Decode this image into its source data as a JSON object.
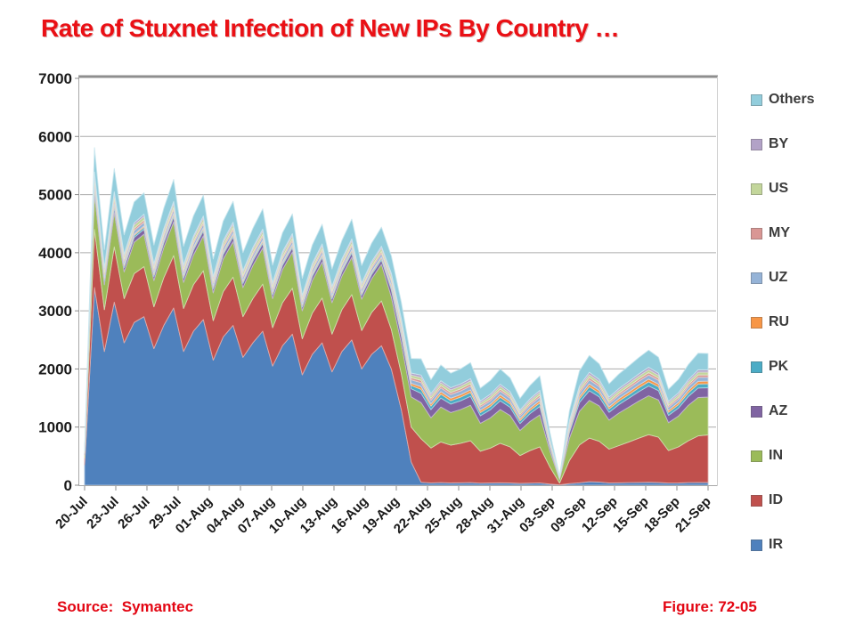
{
  "slide": {
    "title": "Rate of Stuxnet Infection of New IPs By Country …",
    "footer_left": "Source:  Symantec",
    "footer_right": "Figure: 72-05",
    "title_color": "#ea1015",
    "footer_color": "#e30613"
  },
  "chart_data": {
    "type": "area",
    "stacked": true,
    "title": "",
    "xlabel": "",
    "ylabel": "",
    "ylim": [
      0,
      7000
    ],
    "y_ticks": [
      0,
      1000,
      2000,
      3000,
      4000,
      5000,
      6000,
      7000
    ],
    "grid": "horizontal",
    "legend_position": "right",
    "legend_order_top_to_bottom": [
      "Others",
      "BY",
      "US",
      "MY",
      "UZ",
      "RU",
      "PK",
      "AZ",
      "IN",
      "ID",
      "IR"
    ],
    "x_tick_labels": [
      "20-Jul",
      "23-Jul",
      "26-Jul",
      "29-Jul",
      "01-Aug",
      "04-Aug",
      "07-Aug",
      "10-Aug",
      "13-Aug",
      "16-Aug",
      "19-Aug",
      "22-Aug",
      "25-Aug",
      "28-Aug",
      "31-Aug",
      "03-Sep",
      "09-Sep",
      "12-Sep",
      "15-Sep",
      "18-Sep",
      "21-Sep"
    ],
    "series_bottom_to_top": [
      {
        "name": "IR",
        "color": "#4F81BD",
        "values": [
          350,
          3400,
          2300,
          3150,
          2450,
          2800,
          2900,
          2350,
          2750,
          3050,
          2300,
          2650,
          2850,
          2150,
          2550,
          2750,
          2200,
          2450,
          2650,
          2050,
          2400,
          2600,
          1900,
          2250,
          2450,
          1950,
          2300,
          2500,
          2000,
          2250,
          2400,
          2000,
          1300,
          400,
          50,
          40,
          45,
          40,
          42,
          45,
          35,
          38,
          42,
          38,
          30,
          35,
          40,
          20,
          6,
          28,
          42,
          60,
          55,
          40,
          42,
          45,
          48,
          50,
          46,
          36,
          39,
          44,
          48,
          46
        ]
      },
      {
        "name": "ID",
        "color": "#C0504D",
        "values": [
          120,
          1000,
          720,
          950,
          760,
          840,
          860,
          720,
          820,
          900,
          740,
          800,
          840,
          680,
          780,
          830,
          700,
          760,
          810,
          660,
          740,
          790,
          620,
          710,
          770,
          650,
          720,
          780,
          660,
          720,
          770,
          680,
          620,
          600,
          750,
          600,
          700,
          650,
          680,
          720,
          550,
          600,
          680,
          620,
          480,
          560,
          620,
          300,
          30,
          400,
          650,
          750,
          700,
          580,
          640,
          700,
          760,
          820,
          780,
          560,
          620,
          720,
          800,
          820
        ]
      },
      {
        "name": "IN",
        "color": "#9BBB59",
        "values": [
          60,
          620,
          430,
          590,
          460,
          540,
          560,
          450,
          520,
          580,
          450,
          510,
          600,
          480,
          560,
          610,
          500,
          570,
          620,
          500,
          570,
          620,
          480,
          560,
          620,
          540,
          580,
          640,
          540,
          580,
          630,
          560,
          520,
          520,
          620,
          520,
          600,
          560,
          580,
          610,
          480,
          520,
          580,
          540,
          430,
          500,
          550,
          280,
          60,
          380,
          580,
          650,
          610,
          500,
          560,
          600,
          640,
          670,
          640,
          480,
          530,
          610,
          660,
          650
        ]
      },
      {
        "name": "AZ",
        "color": "#8064A2",
        "values": [
          15,
          90,
          70,
          88,
          75,
          82,
          84,
          72,
          80,
          86,
          74,
          80,
          84,
          70,
          78,
          82,
          72,
          76,
          80,
          68,
          75,
          78,
          66,
          72,
          76,
          68,
          72,
          78,
          68,
          72,
          76,
          120,
          130,
          140,
          160,
          140,
          155,
          145,
          150,
          155,
          130,
          140,
          150,
          142,
          120,
          135,
          145,
          70,
          12,
          100,
          150,
          165,
          155,
          135,
          145,
          152,
          160,
          168,
          160,
          125,
          138,
          152,
          165,
          162
        ]
      },
      {
        "name": "PK",
        "color": "#4BACC6",
        "values": [
          6,
          38,
          30,
          37,
          31,
          34,
          35,
          30,
          33,
          36,
          31,
          33,
          35,
          29,
          32,
          34,
          30,
          32,
          33,
          28,
          31,
          33,
          28,
          30,
          32,
          29,
          30,
          33,
          29,
          30,
          32,
          45,
          50,
          55,
          70,
          60,
          65,
          60,
          63,
          66,
          55,
          58,
          62,
          58,
          50,
          55,
          60,
          30,
          6,
          45,
          62,
          70,
          65,
          56,
          60,
          63,
          67,
          70,
          66,
          52,
          57,
          63,
          68,
          67
        ]
      },
      {
        "name": "RU",
        "color": "#F79646",
        "values": [
          4,
          25,
          20,
          24,
          21,
          22,
          23,
          20,
          22,
          24,
          20,
          22,
          23,
          19,
          21,
          22,
          20,
          21,
          22,
          19,
          20,
          22,
          18,
          20,
          21,
          19,
          20,
          22,
          19,
          20,
          21,
          30,
          35,
          38,
          45,
          40,
          45,
          42,
          43,
          45,
          38,
          40,
          43,
          40,
          35,
          38,
          42,
          20,
          4,
          30,
          43,
          48,
          45,
          39,
          42,
          44,
          46,
          48,
          46,
          36,
          40,
          44,
          47,
          46
        ]
      },
      {
        "name": "UZ",
        "color": "#95B3D7",
        "values": [
          10,
          68,
          55,
          66,
          57,
          62,
          63,
          54,
          60,
          65,
          56,
          60,
          63,
          52,
          58,
          62,
          54,
          57,
          60,
          51,
          56,
          59,
          50,
          54,
          57,
          52,
          54,
          59,
          52,
          54,
          57,
          70,
          75,
          60,
          70,
          60,
          65,
          62,
          63,
          66,
          55,
          58,
          62,
          58,
          50,
          55,
          60,
          30,
          6,
          45,
          62,
          70,
          65,
          56,
          60,
          63,
          67,
          70,
          66,
          52,
          57,
          63,
          68,
          67
        ]
      },
      {
        "name": "MY",
        "color": "#D99694",
        "values": [
          6,
          42,
          34,
          41,
          35,
          38,
          39,
          33,
          37,
          40,
          34,
          37,
          39,
          32,
          36,
          38,
          33,
          35,
          37,
          31,
          35,
          36,
          30,
          33,
          36,
          32,
          33,
          36,
          32,
          33,
          36,
          40,
          40,
          36,
          40,
          35,
          38,
          36,
          37,
          39,
          32,
          34,
          36,
          34,
          30,
          32,
          35,
          18,
          4,
          26,
          36,
          40,
          38,
          33,
          35,
          37,
          39,
          41,
          38,
          30,
          33,
          36,
          40,
          39
        ]
      },
      {
        "name": "US",
        "color": "#C3D69B",
        "values": [
          10,
          66,
          53,
          64,
          55,
          60,
          61,
          52,
          58,
          63,
          54,
          58,
          61,
          50,
          56,
          60,
          52,
          55,
          58,
          49,
          54,
          57,
          48,
          52,
          55,
          50,
          52,
          57,
          50,
          52,
          55,
          60,
          60,
          45,
          50,
          45,
          48,
          46,
          47,
          49,
          42,
          44,
          46,
          44,
          38,
          42,
          45,
          22,
          6,
          34,
          46,
          50,
          48,
          43,
          45,
          47,
          49,
          51,
          48,
          40,
          43,
          46,
          50,
          49
        ]
      },
      {
        "name": "BY",
        "color": "#B2A2C7",
        "values": [
          6,
          40,
          32,
          39,
          33,
          36,
          37,
          32,
          35,
          38,
          33,
          35,
          37,
          30,
          34,
          36,
          31,
          33,
          35,
          30,
          33,
          34,
          29,
          32,
          34,
          30,
          32,
          34,
          30,
          32,
          34,
          40,
          40,
          36,
          40,
          35,
          38,
          36,
          37,
          39,
          32,
          34,
          36,
          34,
          30,
          32,
          35,
          18,
          4,
          26,
          36,
          40,
          38,
          33,
          35,
          37,
          39,
          41,
          38,
          30,
          33,
          36,
          40,
          39
        ]
      },
      {
        "name": "Others",
        "color": "#92CDDC",
        "values": [
          40,
          420,
          310,
          400,
          330,
          360,
          370,
          320,
          350,
          380,
          320,
          350,
          360,
          300,
          340,
          360,
          310,
          330,
          350,
          300,
          330,
          340,
          290,
          320,
          340,
          300,
          320,
          340,
          300,
          320,
          330,
          300,
          280,
          250,
          280,
          240,
          270,
          250,
          260,
          275,
          220,
          235,
          260,
          240,
          200,
          230,
          250,
          120,
          25,
          170,
          260,
          290,
          270,
          230,
          250,
          265,
          280,
          295,
          275,
          210,
          230,
          260,
          285,
          280
        ]
      }
    ]
  }
}
